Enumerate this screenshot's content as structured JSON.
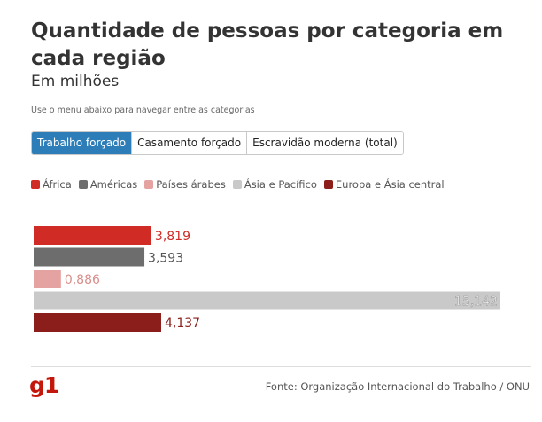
{
  "header": {
    "title": "Quantidade de pessoas por categoria em cada região",
    "subtitle": "Em milhões",
    "hint": "Use o menu abaixo para navegar entre as categorias"
  },
  "tabs": [
    {
      "label": "Trabalho forçado",
      "active": true
    },
    {
      "label": "Casamento forçado",
      "active": false
    },
    {
      "label": "Escravidão moderna (total)",
      "active": false
    }
  ],
  "legend": [
    {
      "label": "África",
      "color": "#d02b25"
    },
    {
      "label": "Américas",
      "color": "#6d6d6d"
    },
    {
      "label": "Países árabes",
      "color": "#e4a3a1"
    },
    {
      "label": "Ásia e Pacífico",
      "color": "#c9c9c9"
    },
    {
      "label": "Europa e Ásia central",
      "color": "#8b1e1a"
    }
  ],
  "chart_data": {
    "type": "bar",
    "orientation": "horizontal",
    "categories": [
      "África",
      "Américas",
      "Países árabes",
      "Ásia e Pacífico",
      "Europa e Ásia central"
    ],
    "values": [
      3.819,
      3.593,
      0.886,
      15.142,
      4.137
    ],
    "value_labels": [
      "3,819",
      "3,593",
      "0,886",
      "15,142",
      "4,137"
    ],
    "colors": [
      "#d02b25",
      "#6d6d6d",
      "#e4a3a1",
      "#c9c9c9",
      "#8b1e1a"
    ],
    "label_colors": [
      "#d02b25",
      "#555555",
      "#d98f8c",
      "#ffffff",
      "#8b1e1a"
    ],
    "xlim": [
      0,
      15.142
    ],
    "grid": false
  },
  "footer": {
    "logo": "g1",
    "source": "Fonte: Organização Internacional do Trabalho / ONU"
  }
}
